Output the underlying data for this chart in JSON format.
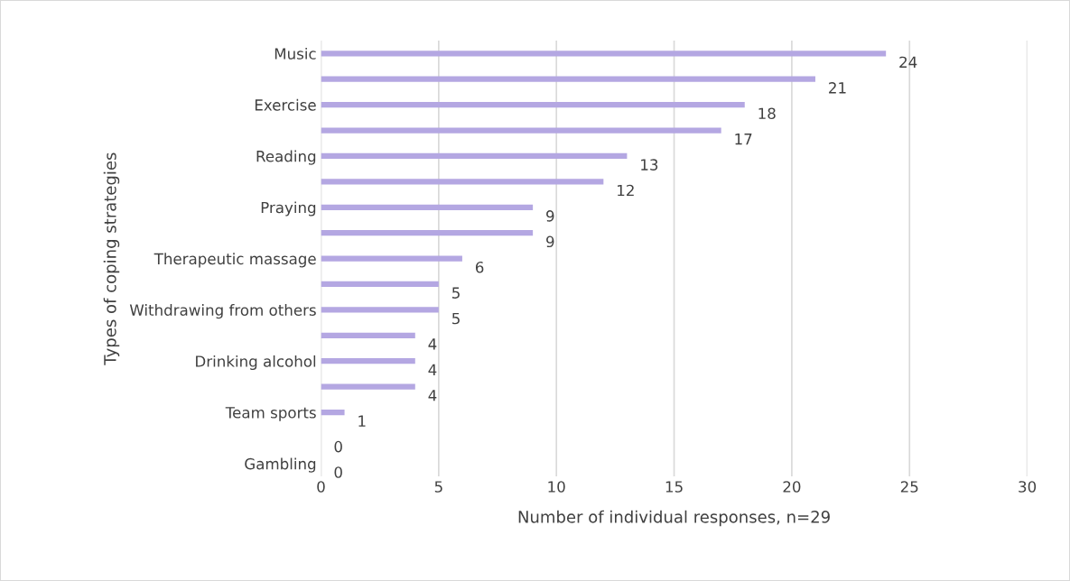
{
  "chart_data": {
    "type": "bar",
    "orientation": "horizontal",
    "xlabel": "Number of individual responses, n=29",
    "ylabel": "Types of coping strategies",
    "categories": [
      "Music",
      null,
      "Exercise",
      null,
      "Reading",
      null,
      "Praying",
      null,
      "Therapeutic massage",
      null,
      "Withdrawing from others",
      null,
      "Drinking alcohol",
      null,
      "Team sports",
      null,
      "Gambling"
    ],
    "values": [
      24,
      21,
      18,
      17,
      13,
      12,
      9,
      9,
      6,
      5,
      5,
      4,
      4,
      4,
      1,
      0,
      0
    ],
    "color": "#b4a7e2",
    "xlim": [
      0,
      30
    ],
    "xticks": [
      0,
      5,
      10,
      15,
      20,
      25,
      30
    ],
    "grid": "x",
    "data_labels": true
  }
}
